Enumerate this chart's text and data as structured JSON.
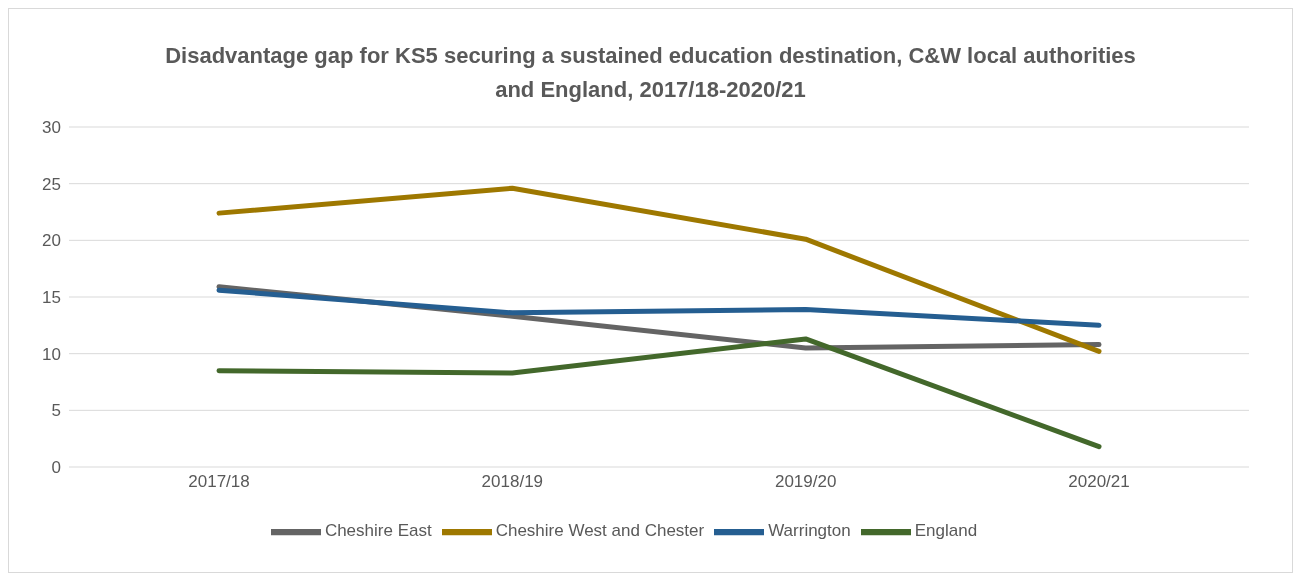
{
  "chart_data": {
    "type": "line",
    "title": "Disadvantage gap for KS5 securing a sustained education destination, C&W local authorities and England, 2017/18-2020/21",
    "categories": [
      "2017/18",
      "2018/19",
      "2019/20",
      "2020/21"
    ],
    "series": [
      {
        "name": "Cheshire East",
        "color": "#646464",
        "values": [
          15.9,
          13.3,
          10.5,
          10.8
        ]
      },
      {
        "name": "Cheshire West and Chester",
        "color": "#9e7800",
        "values": [
          22.4,
          24.6,
          20.1,
          10.2
        ]
      },
      {
        "name": "Warrington",
        "color": "#255e91",
        "values": [
          15.6,
          13.6,
          13.9,
          12.5
        ]
      },
      {
        "name": "England",
        "color": "#43682b",
        "values": [
          8.5,
          8.3,
          11.3,
          1.8
        ]
      }
    ],
    "ylim": [
      0,
      30
    ],
    "yticks": [
      0,
      5,
      10,
      15,
      20,
      25,
      30
    ],
    "grid": "y",
    "legend": "bottom",
    "marker": "none",
    "line_style": "solid"
  }
}
